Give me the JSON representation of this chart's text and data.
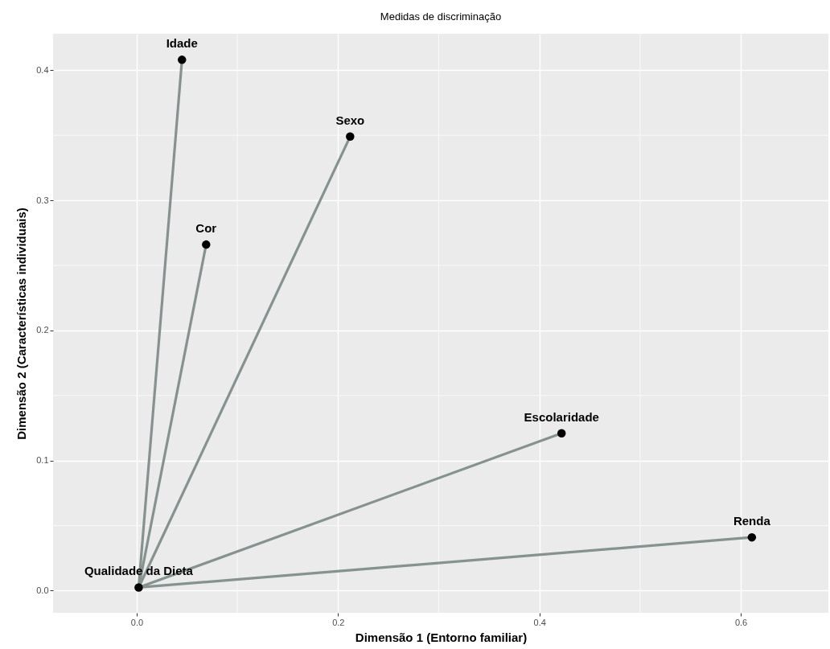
{
  "chart_data": {
    "type": "scatter",
    "title": "Medidas de discriminação",
    "xlabel": "Dimensão 1 (Entorno familiar)",
    "ylabel": "Dimensão 2 (Características individuais)",
    "xlim": [
      -0.083,
      0.687
    ],
    "ylim": [
      -0.017,
      0.428
    ],
    "xticks": [
      {
        "value": 0,
        "label": "0.0"
      },
      0.2,
      0.4,
      0.6
    ],
    "yticks": [
      {
        "value": 0,
        "label": "0.0"
      },
      0.1,
      0.2,
      0.3,
      0.4
    ],
    "grid": true,
    "series": [
      {
        "type": "line",
        "color": "#859290",
        "x": [
          0.002,
          0.045
        ],
        "values": [
          0.0025,
          0.408
        ]
      },
      {
        "type": "line",
        "color": "#859290",
        "x": [
          0.002,
          0.212
        ],
        "values": [
          0.0025,
          0.349
        ]
      },
      {
        "type": "line",
        "color": "#859290",
        "x": [
          0.002,
          0.069
        ],
        "values": [
          0.0025,
          0.266
        ]
      },
      {
        "type": "line",
        "color": "#859290",
        "x": [
          0.002,
          0.422
        ],
        "values": [
          0.0025,
          0.121
        ]
      },
      {
        "type": "line",
        "color": "#859290",
        "x": [
          0.002,
          0.611
        ],
        "values": [
          0.0025,
          0.041
        ]
      },
      {
        "color": "#000000",
        "marker": "circle",
        "x": [
          0.045,
          0.212,
          0.069,
          0.422,
          0.611,
          0.002
        ],
        "values": [
          0.408,
          0.349,
          0.266,
          0.121,
          0.041,
          0.0025
        ]
      }
    ],
    "annotations": [
      {
        "text": "Idade",
        "x": 0.045,
        "y": 0.408
      },
      {
        "text": "Sexo",
        "x": 0.212,
        "y": 0.349
      },
      {
        "text": "Cor",
        "x": 0.069,
        "y": 0.266
      },
      {
        "text": "Escolaridade",
        "x": 0.422,
        "y": 0.121
      },
      {
        "text": "Renda",
        "x": 0.611,
        "y": 0.041
      },
      {
        "text": "Qualidade da Dieta",
        "x": 0.002,
        "y": 0.0025
      }
    ]
  }
}
